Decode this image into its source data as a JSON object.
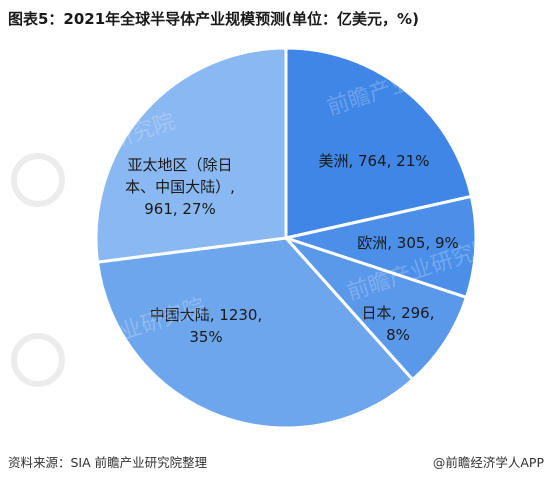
{
  "header": {
    "title": "图表5：2021年全球半导体产业规模预测(单位：亿美元，%)"
  },
  "chart_data": {
    "type": "pie",
    "title": "图表5：2021年全球半导体产业规模预测(单位：亿美元，%)",
    "unit": "亿美元",
    "start_angle_deg": 0,
    "direction": "clockwise",
    "slices": [
      {
        "label": "美洲",
        "value": 764,
        "percent": 21,
        "color": "#3f86e6",
        "label_lines": [
          "美洲, 764, 21%"
        ]
      },
      {
        "label": "欧洲",
        "value": 305,
        "percent": 9,
        "color": "#4b8fe8",
        "label_lines": [
          "欧洲, 305, 9%"
        ]
      },
      {
        "label": "日本",
        "value": 296,
        "percent": 8,
        "color": "#5a98ea",
        "label_lines": [
          "日本, 296,",
          "8%"
        ]
      },
      {
        "label": "中国大陆",
        "value": 1230,
        "percent": 35,
        "color": "#6ea6ee",
        "label_lines": [
          "中国大陆, 1230,",
          "35%"
        ]
      },
      {
        "label": "亚太地区（除日本、中国大陆）",
        "value": 961,
        "percent": 27,
        "color": "#8ab8f2",
        "label_lines": [
          "亚太地区（除日",
          "本、中国大陆）,",
          "961, 27%"
        ]
      }
    ]
  },
  "watermark": {
    "text": "前瞻产业研究院"
  },
  "footer": {
    "source": "资料来源：SIA 前瞻产业研究院整理",
    "credit": "@前瞻经济学人APP"
  }
}
